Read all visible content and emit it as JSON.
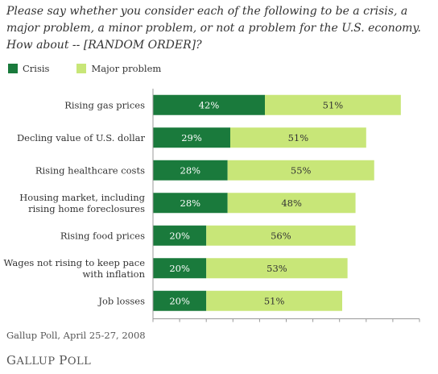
{
  "title": "Please say whether you consider each of the following to be a crisis, a major problem, a minor problem, or not a problem for the U.S. economy. How about -- [RANDOM ORDER]?",
  "source": "Gallup Poll, April 25-27, 2008",
  "logo": "GALLUP POLL",
  "colors": {
    "crisis": "#1a7a3c",
    "major": "#c8e678",
    "text": "#333333",
    "axis": "#999999"
  },
  "chart_data": {
    "type": "bar",
    "orientation": "horizontal",
    "stacked": true,
    "categories": [
      "Rising gas prices",
      "Decling value of U.S. dollar",
      "Rising healthcare costs",
      "Housing market, including rising home foreclosures",
      "Rising food prices",
      "Wages not rising to keep pace with inflation",
      "Job losses"
    ],
    "category_lines": [
      [
        "Rising gas prices"
      ],
      [
        "Decling value of U.S. dollar"
      ],
      [
        "Rising healthcare costs"
      ],
      [
        "Housing market, including",
        "rising home foreclosures"
      ],
      [
        "Rising food prices"
      ],
      [
        "Wages not rising to keep pace",
        "with inflation"
      ],
      [
        "Job losses"
      ]
    ],
    "series": [
      {
        "name": "Crisis",
        "values": [
          42,
          29,
          28,
          28,
          20,
          20,
          20
        ]
      },
      {
        "name": "Major problem",
        "values": [
          51,
          51,
          55,
          48,
          56,
          53,
          51
        ]
      }
    ],
    "xlim": [
      0,
      100
    ],
    "xticks": [
      "0%",
      "10%",
      "20%",
      "30%",
      "40%",
      "50%",
      "60%",
      "70%",
      "80%",
      "90%",
      "100%"
    ],
    "legend_position": "top-left",
    "grid": false
  }
}
